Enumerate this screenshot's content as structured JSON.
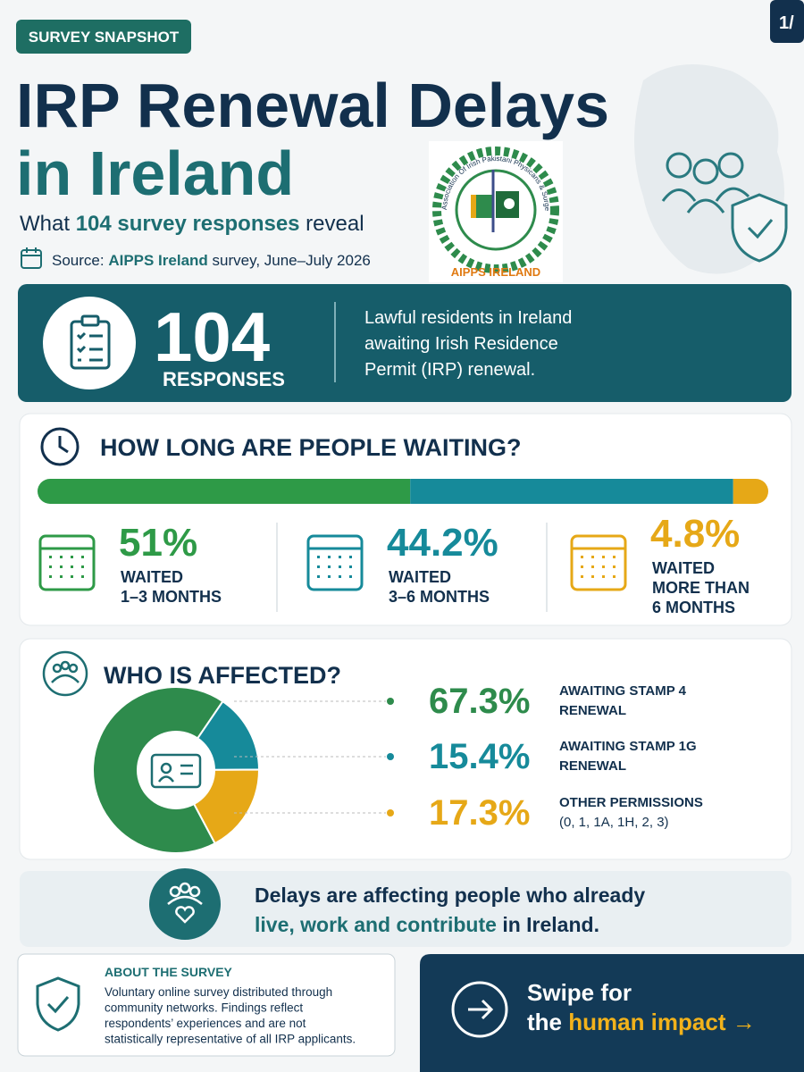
{
  "badge": "SURVEY SNAPSHOT",
  "page_indicator": "1/",
  "title": {
    "line1": "IRP Renewal Delays",
    "line2": "in Ireland"
  },
  "subtitle": {
    "before": "What ",
    "highlight": "104 survey responses",
    "after": " reveal"
  },
  "source": {
    "before": "Source: ",
    "highlight": "AIPPS Ireland",
    "after": " survey, June–July 2026"
  },
  "logo": {
    "ring_text": "Association Of Irish Pakistani Physicans & Surgeons Ireland",
    "name": "AIPPS IRELAND"
  },
  "responses": {
    "number": "104",
    "label": "RESPONSES",
    "description": [
      "Lawful residents in Ireland",
      "awaiting Irish Residence",
      "Permit (IRP) renewal."
    ]
  },
  "waiting": {
    "heading": "HOW LONG ARE PEOPLE WAITING?",
    "groups": [
      {
        "value": 51,
        "label": "51%",
        "caption": [
          "WAITED",
          "1–3 MONTHS"
        ],
        "color": "#2e9a47"
      },
      {
        "value": 44.2,
        "label": "44.2%",
        "caption": [
          "WAITED",
          "3–6 MONTHS"
        ],
        "color": "#168a9a"
      },
      {
        "value": 4.8,
        "label": "4.8%",
        "caption": [
          "WAITED",
          "MORE THAN",
          "6 MONTHS"
        ],
        "color": "#e6a817"
      }
    ]
  },
  "affected": {
    "heading": "WHO IS AFFECTED?",
    "groups": [
      {
        "value": 67.3,
        "label": "67.3%",
        "caption": [
          "AWAITING STAMP 4",
          "RENEWAL"
        ],
        "color": "#2e8b4c"
      },
      {
        "value": 15.4,
        "label": "15.4%",
        "caption": [
          "AWAITING STAMP 1G",
          "RENEWAL"
        ],
        "color": "#168a9a"
      },
      {
        "value": 17.3,
        "label": "17.3%",
        "caption": [
          "OTHER PERMISSIONS",
          "(0, 1, 1A, 1H, 2, 3)"
        ],
        "color": "#e6a817"
      }
    ]
  },
  "message": {
    "line1": "Delays are affecting people who already",
    "highlight": "live, work and contribute",
    "after": " in Ireland."
  },
  "about": {
    "heading": "ABOUT THE SURVEY",
    "lines": [
      "Voluntary online survey distributed through",
      "community networks. Findings reflect",
      "respondents’ experiences and are not",
      "statistically representative of all IRP applicants."
    ]
  },
  "cta": {
    "line1": "Swipe for",
    "before": "the ",
    "highlight": "human impact →"
  }
}
